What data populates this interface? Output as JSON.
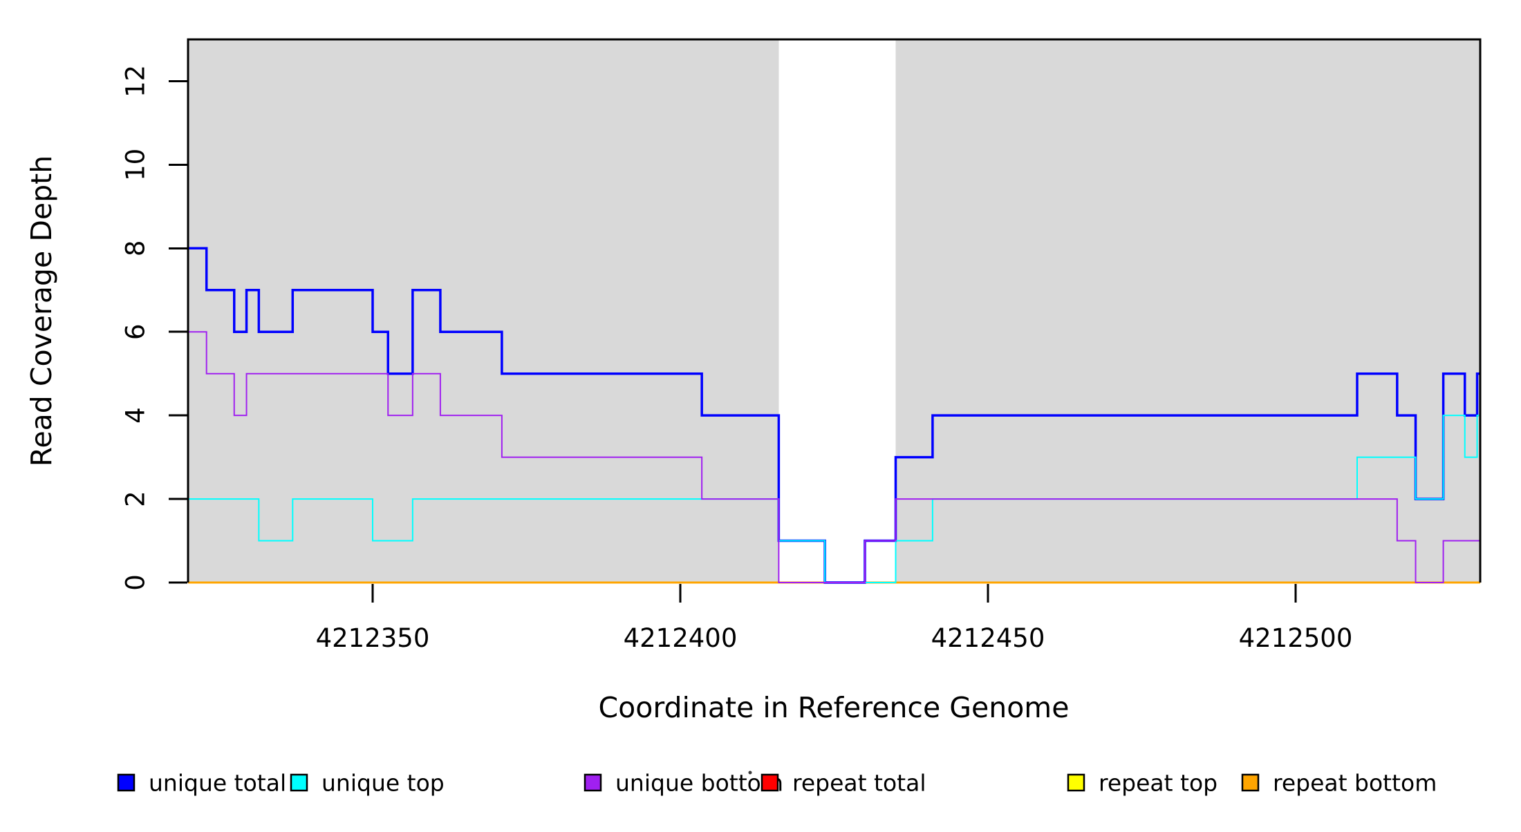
{
  "chart_data": {
    "type": "line",
    "subtype": "step-coverage",
    "title": "",
    "xlabel": "Coordinate in Reference Genome",
    "ylabel": "Read Coverage Depth",
    "xlim": [
      4212320,
      4212530
    ],
    "ylim": [
      0,
      13
    ],
    "x_ticks": [
      4212350,
      4212400,
      4212450,
      4212500
    ],
    "x_tick_labels": [
      "4212350",
      "4212400",
      "4212450",
      "4212500"
    ],
    "y_ticks": [
      0,
      2,
      4,
      6,
      8,
      10,
      12
    ],
    "y_tick_labels": [
      "0",
      "2",
      "4",
      "6",
      "8",
      "10",
      "12"
    ],
    "grid": false,
    "legend_position": "bottom",
    "plot_background": "#FFFFFF",
    "shaded_region_color": "#D9D9D9",
    "background_regions": [
      {
        "name": "shaded-region-left",
        "x_start": 4212320,
        "x_end": 4212416
      },
      {
        "name": "shaded-region-right",
        "x_start": 4212435,
        "x_end": 4212530
      }
    ],
    "series": [
      {
        "name": "repeat total",
        "color": "#FF0000",
        "line_width": 2.5,
        "segments": [
          [
            4212320,
            4212530,
            0
          ]
        ]
      },
      {
        "name": "repeat top",
        "color": "#FFFF00",
        "line_width": 2.5,
        "segments": [
          [
            4212320,
            4212530,
            0
          ]
        ]
      },
      {
        "name": "repeat bottom",
        "color": "#FFA500",
        "line_width": 3,
        "segments": [
          [
            4212320,
            4212530,
            0
          ]
        ]
      },
      {
        "name": "unique total",
        "color": "#0000FF",
        "line_width": 3.5,
        "segments": [
          [
            4212320,
            4212323,
            8
          ],
          [
            4212323,
            4212327.5,
            7
          ],
          [
            4212327.5,
            4212329.5,
            6
          ],
          [
            4212329.5,
            4212331.5,
            7
          ],
          [
            4212331.5,
            4212337,
            6
          ],
          [
            4212337,
            4212350,
            7
          ],
          [
            4212350,
            4212352.5,
            6
          ],
          [
            4212352.5,
            4212356.5,
            5
          ],
          [
            4212356.5,
            4212361,
            7
          ],
          [
            4212361,
            4212371,
            6
          ],
          [
            4212371,
            4212403.5,
            5
          ],
          [
            4212403.5,
            4212416,
            4
          ],
          [
            4212416,
            4212423.5,
            1
          ],
          [
            4212423.5,
            4212430,
            0
          ],
          [
            4212430,
            4212435,
            1
          ],
          [
            4212435,
            4212441,
            3
          ],
          [
            4212441,
            4212510,
            4
          ],
          [
            4212510,
            4212516.5,
            5
          ],
          [
            4212516.5,
            4212519.5,
            4
          ],
          [
            4212519.5,
            4212524,
            2
          ],
          [
            4212524,
            4212527.5,
            5
          ],
          [
            4212527.5,
            4212529.5,
            4
          ],
          [
            4212529.5,
            4212530,
            5
          ]
        ]
      },
      {
        "name": "unique top",
        "color": "#00FFFF",
        "line_width": 2,
        "segments": [
          [
            4212320,
            4212331.5,
            2
          ],
          [
            4212331.5,
            4212337,
            1
          ],
          [
            4212337,
            4212350,
            2
          ],
          [
            4212350,
            4212356.5,
            1
          ],
          [
            4212356.5,
            4212416,
            2
          ],
          [
            4212416,
            4212423.5,
            1
          ],
          [
            4212423.5,
            4212435,
            0
          ],
          [
            4212435,
            4212441,
            1
          ],
          [
            4212441,
            4212510,
            2
          ],
          [
            4212510,
            4212519.5,
            3
          ],
          [
            4212519.5,
            4212524,
            2
          ],
          [
            4212524,
            4212527.5,
            4
          ],
          [
            4212527.5,
            4212529.5,
            3
          ],
          [
            4212529.5,
            4212530,
            4
          ]
        ]
      },
      {
        "name": "unique bottom",
        "color": "#A020F0",
        "line_width": 2,
        "segments": [
          [
            4212320,
            4212323,
            6
          ],
          [
            4212323,
            4212327.5,
            5
          ],
          [
            4212327.5,
            4212329.5,
            4
          ],
          [
            4212329.5,
            4212352.5,
            5
          ],
          [
            4212352.5,
            4212356.5,
            4
          ],
          [
            4212356.5,
            4212361,
            5
          ],
          [
            4212361,
            4212371,
            4
          ],
          [
            4212371,
            4212403.5,
            3
          ],
          [
            4212403.5,
            4212416,
            2
          ],
          [
            4212416,
            4212430,
            0
          ],
          [
            4212430,
            4212435,
            1
          ],
          [
            4212435,
            4212516.5,
            2
          ],
          [
            4212516.5,
            4212519.5,
            1
          ],
          [
            4212519.5,
            4212524,
            0
          ],
          [
            4212524,
            4212530,
            1
          ]
        ]
      }
    ]
  },
  "legend": {
    "items": [
      {
        "label": "unique total",
        "color": "#0000FF"
      },
      {
        "label": "unique top",
        "color": "#00FFFF"
      },
      {
        "label": "unique bottom",
        "color": "#A020F0"
      },
      {
        "label": "repeat total",
        "color": "#FF0000"
      },
      {
        "label": "repeat top",
        "color": "#FFFF00"
      },
      {
        "label": "repeat bottom",
        "color": "#FFA500"
      }
    ]
  }
}
